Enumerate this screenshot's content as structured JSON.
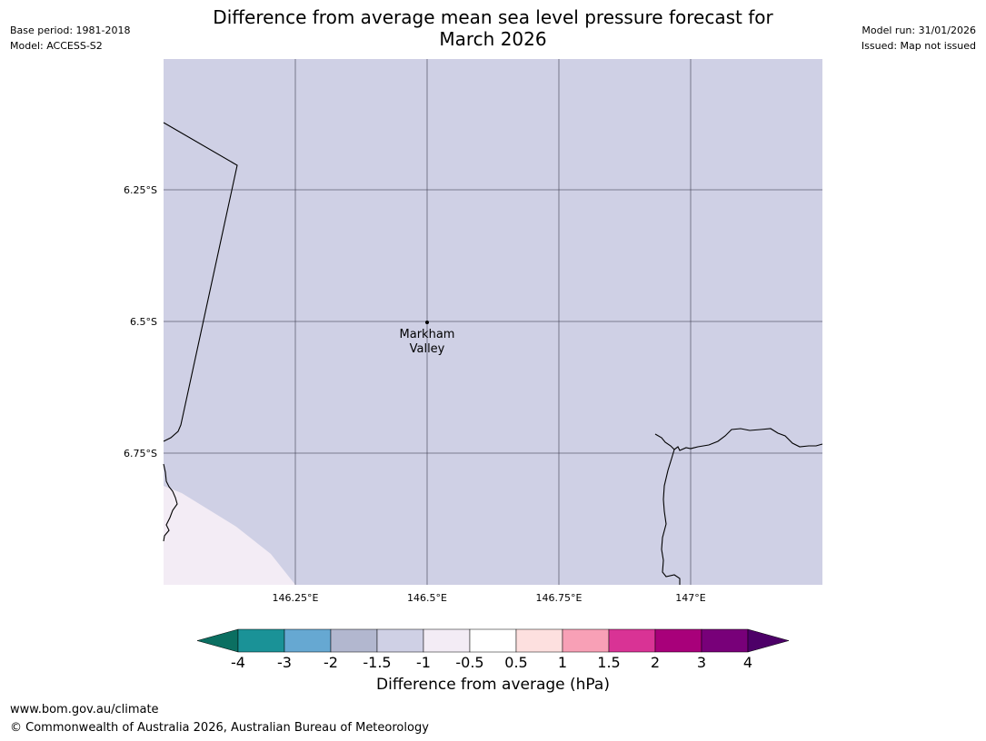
{
  "header": {
    "title_line1": "Difference from average mean sea level pressure forecast for",
    "title_line2": "March 2026",
    "base_period": "Base period: 1981-2018",
    "model": "Model: ACCESS-S2",
    "model_run": "Model run: 31/01/2026",
    "issued": "Issued: Map not issued"
  },
  "map": {
    "lat_labels": [
      "6.25°S",
      "6.5°S",
      "6.75°S"
    ],
    "lon_labels": [
      "146.25°E",
      "146.5°E",
      "146.75°E",
      "147°E"
    ],
    "place": {
      "name_line1": "Markham",
      "name_line2": "Valley"
    },
    "colors": {
      "main_field": "#cfd0e5",
      "low_field": "#f3ecf5",
      "gridline": "#444455",
      "coast": "#000000"
    }
  },
  "legend": {
    "label": "Difference from average (hPa)",
    "ticks": [
      "-4",
      "-3",
      "-2",
      "-1.5",
      "-1",
      "-0.5",
      "0.5",
      "1",
      "1.5",
      "2",
      "3",
      "4"
    ],
    "colors": [
      "#0b6f61",
      "#1a9297",
      "#66a8d2",
      "#b2b7cf",
      "#cfd0e5",
      "#f3ecf5",
      "#ffffff",
      "#fde0df",
      "#f8a0b6",
      "#d93395",
      "#a8007a",
      "#780079",
      "#4d0068"
    ]
  },
  "footer": {
    "url": "www.bom.gov.au/climate",
    "copyright": "© Commonwealth of Australia 2026, Australian Bureau of Meteorology"
  }
}
